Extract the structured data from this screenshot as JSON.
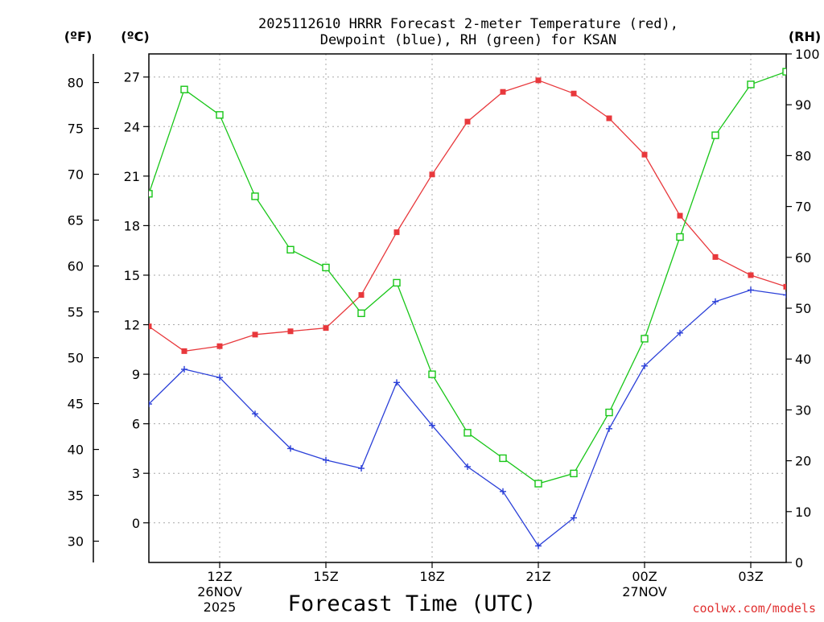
{
  "chart_data": {
    "type": "line",
    "title_line1": "2025112610 HRRR Forecast 2-meter Temperature (red),",
    "title_line2": "Dewpoint (blue), RH (green) for KSAN",
    "xlabel": "Forecast Time (UTC)",
    "watermark": "coolwx.com/models",
    "unit_labels": {
      "fahrenheit": "(ºF)",
      "celsius": "(ºC)",
      "rh": "(RH)"
    },
    "x_hours": [
      10,
      11,
      12,
      13,
      14,
      15,
      16,
      17,
      18,
      19,
      20,
      21,
      22,
      23,
      24,
      25,
      26,
      27,
      28
    ],
    "x_range": [
      10,
      28
    ],
    "x_ticks": [
      {
        "hour": 12,
        "label": "12Z",
        "sub1": "26NOV",
        "sub2": "2025"
      },
      {
        "hour": 15,
        "label": "15Z"
      },
      {
        "hour": 18,
        "label": "18Z"
      },
      {
        "hour": 21,
        "label": "21Z"
      },
      {
        "hour": 24,
        "label": "00Z",
        "sub1": "27NOV"
      },
      {
        "hour": 27,
        "label": "03Z"
      }
    ],
    "celsius_axis": {
      "range": [
        -2.4,
        28.4
      ],
      "ticks": [
        0,
        3,
        6,
        9,
        12,
        15,
        18,
        21,
        24,
        27
      ]
    },
    "fahrenheit_axis": {
      "ticks": [
        30,
        35,
        40,
        45,
        50,
        55,
        60,
        65,
        70,
        75,
        80
      ]
    },
    "rh_axis": {
      "range": [
        0,
        100
      ],
      "ticks": [
        0,
        10,
        20,
        30,
        40,
        50,
        60,
        70,
        80,
        90,
        100
      ]
    },
    "colors": {
      "temperature": "#e8383c",
      "dewpoint": "#2a3fd8",
      "rh": "#18c618",
      "grid": "#a8a8a8",
      "watermark": "#e03030"
    },
    "series": [
      {
        "name": "Temperature",
        "axis": "celsius",
        "marker": "filled-square",
        "color": "#e8383c",
        "values": [
          11.9,
          10.4,
          10.7,
          11.4,
          11.6,
          11.8,
          13.8,
          17.6,
          21.1,
          24.3,
          26.1,
          26.8,
          26.0,
          24.5,
          22.3,
          18.6,
          16.1,
          15.0,
          14.3
        ]
      },
      {
        "name": "Dewpoint",
        "axis": "celsius",
        "marker": "plus",
        "color": "#2a3fd8",
        "values": [
          7.2,
          9.3,
          8.8,
          6.6,
          4.5,
          3.8,
          3.3,
          8.5,
          5.9,
          3.4,
          1.9,
          -1.4,
          0.3,
          5.7,
          9.5,
          11.5,
          13.4,
          14.1,
          13.8
        ]
      },
      {
        "name": "RH",
        "axis": "rh",
        "marker": "open-square",
        "color": "#18c618",
        "values": [
          72.5,
          93.0,
          88.0,
          72.0,
          61.5,
          58.0,
          49.0,
          55.0,
          37.0,
          25.5,
          20.5,
          15.5,
          17.5,
          29.5,
          44.0,
          64.0,
          84.0,
          94.0,
          96.5
        ]
      }
    ]
  }
}
